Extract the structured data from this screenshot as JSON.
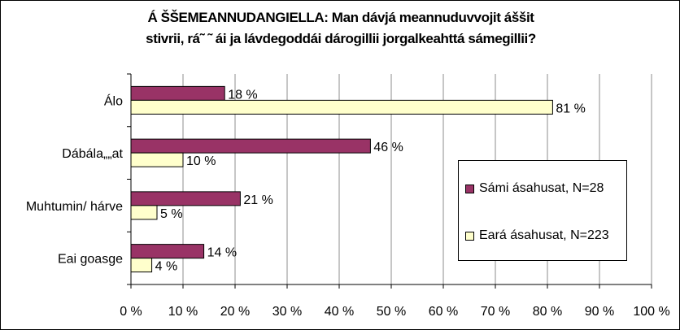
{
  "chart_data": {
    "type": "bar",
    "orientation": "horizontal",
    "title_lines": [
      "Á ŠŠEMEANNUDANGIELLA: Man dávjá meannuduvvojit áššit",
      "stivrii, rá˜ ˜ ái ja lávdegoddái dárogillii jorgalkeahttá sámegillii?"
    ],
    "categories": [
      "Álo",
      "Dábála„„at",
      "Muhtumin/ hárve",
      "Eai goasge"
    ],
    "series": [
      {
        "name": "Sámi ásahusat, N=28",
        "color": "#993366",
        "values": [
          18,
          46,
          21,
          14
        ]
      },
      {
        "name": "Eará ásahusat, N=223",
        "color": "#ffffcc",
        "values": [
          81,
          10,
          5,
          4
        ]
      }
    ],
    "value_suffix": " %",
    "xlim": [
      0,
      100
    ],
    "xticks": [
      "0 %",
      "10 %",
      "20 %",
      "30 %",
      "40 %",
      "50 %",
      "60 %",
      "70 %",
      "80 %",
      "90 %",
      "100 %"
    ],
    "xtick_values": [
      0,
      10,
      20,
      30,
      40,
      50,
      60,
      70,
      80,
      90,
      100
    ],
    "grid": true,
    "legend_position": "right"
  }
}
